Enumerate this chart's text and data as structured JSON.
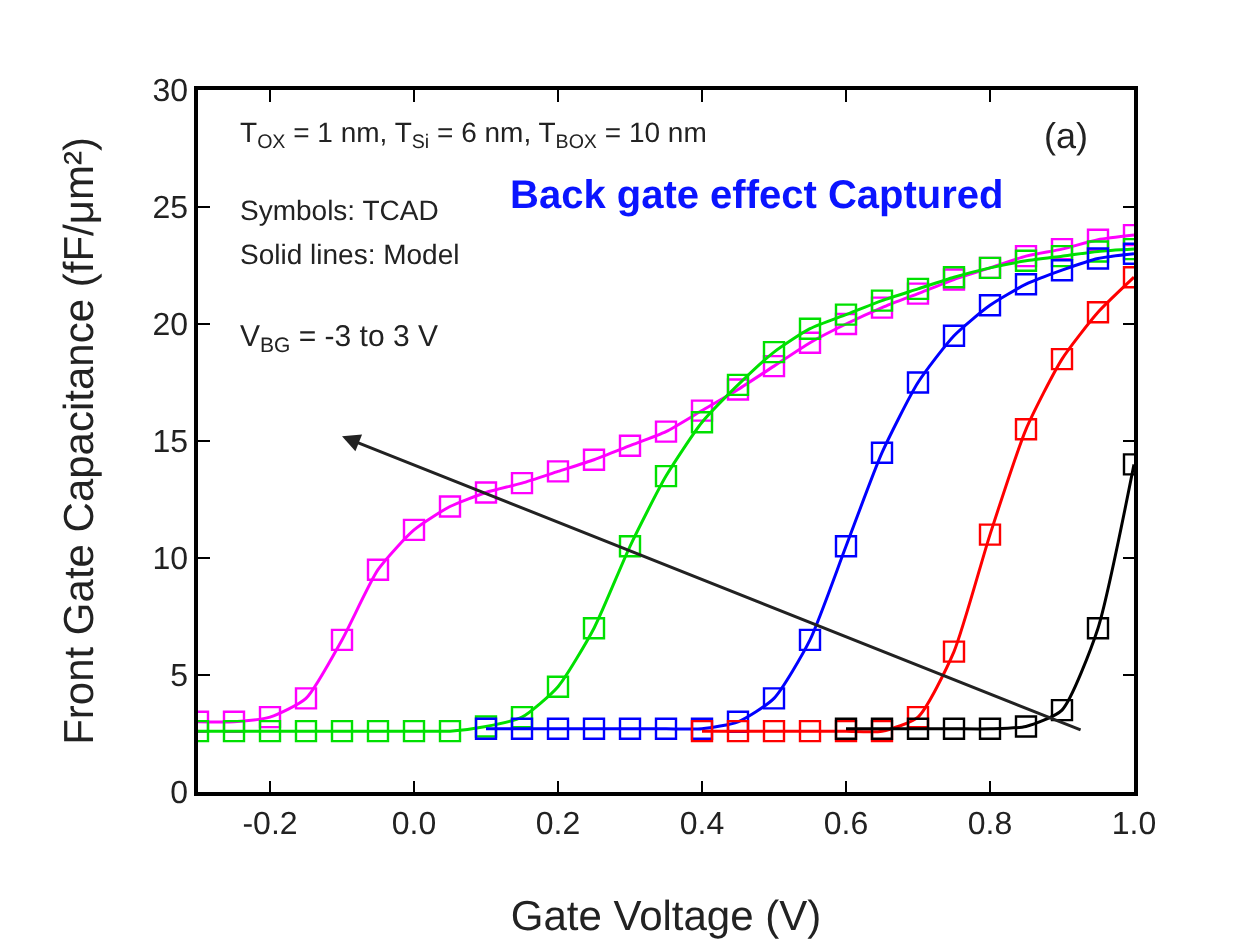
{
  "chart_data": {
    "type": "line",
    "xlabel": "Gate Voltage (V)",
    "ylabel": "Front Gate Capacitance (fF/μm²)",
    "xlim": [
      -0.3,
      1.0
    ],
    "xticks": [
      {
        "value": -0.2,
        "label": "-0.2"
      },
      {
        "value": 0,
        "label": "0.0"
      },
      {
        "value": 0.2,
        "label": "0.2"
      },
      {
        "value": 0.4,
        "label": "0.4"
      },
      {
        "value": 0.6,
        "label": "0.6"
      },
      {
        "value": 0.8,
        "label": "0.8"
      },
      {
        "value": 1,
        "label": "1.0"
      }
    ],
    "ylim": [
      0,
      30
    ],
    "yticks": [
      0,
      5,
      10,
      15,
      20,
      25,
      30
    ],
    "grid": false,
    "marker": "square",
    "line_style": "solid",
    "annotations": [
      "T$_{OX}$ = 1 nm, T$_{Si}$ = 6 nm, T$_{BOX}$ = 10 nm",
      "Symbols: TCAD",
      "Solid lines: Model",
      "(a)",
      "Back gate effect Captured",
      "V$_{BG}$ = -3 to 3 V"
    ],
    "series": [
      {
        "color": "#ff00ff",
        "x": [
          -0.3,
          -0.25,
          -0.2,
          -0.15,
          -0.1,
          -0.05,
          0,
          0.05,
          0.1,
          0.15,
          0.2,
          0.25,
          0.3,
          0.35,
          0.4,
          0.45,
          0.5,
          0.55,
          0.6,
          0.65,
          0.7,
          0.75,
          0.8,
          0.85,
          0.9,
          0.95,
          1.0
        ],
        "values": [
          3.0,
          3.0,
          3.2,
          4.0,
          6.5,
          9.5,
          11.2,
          12.2,
          12.8,
          13.2,
          13.7,
          14.2,
          14.8,
          15.4,
          16.3,
          17.2,
          18.2,
          19.2,
          20.0,
          20.7,
          21.3,
          21.9,
          22.4,
          22.9,
          23.2,
          23.6,
          23.8
        ]
      },
      {
        "color": "#00e000",
        "x": [
          -0.3,
          -0.25,
          -0.2,
          -0.15,
          -0.1,
          -0.05,
          0,
          0.05,
          0.1,
          0.15,
          0.2,
          0.25,
          0.3,
          0.35,
          0.4,
          0.45,
          0.5,
          0.55,
          0.6,
          0.65,
          0.7,
          0.75,
          0.8,
          0.85,
          0.9,
          0.95,
          1.0
        ],
        "values": [
          2.6,
          2.6,
          2.6,
          2.6,
          2.6,
          2.6,
          2.6,
          2.6,
          2.8,
          3.2,
          4.5,
          7.0,
          10.5,
          13.5,
          15.8,
          17.4,
          18.8,
          19.8,
          20.4,
          21.0,
          21.5,
          22.0,
          22.4,
          22.7,
          22.9,
          23.1,
          23.2
        ]
      },
      {
        "color": "#0000ff",
        "x": [
          0.1,
          0.15,
          0.2,
          0.25,
          0.3,
          0.35,
          0.4,
          0.45,
          0.5,
          0.55,
          0.6,
          0.65,
          0.7,
          0.75,
          0.8,
          0.85,
          0.9,
          0.95,
          1.0
        ],
        "values": [
          2.7,
          2.7,
          2.7,
          2.7,
          2.7,
          2.7,
          2.7,
          3.0,
          4.0,
          6.5,
          10.5,
          14.5,
          17.5,
          19.5,
          20.8,
          21.7,
          22.3,
          22.8,
          23.0
        ]
      },
      {
        "color": "#ff0000",
        "x": [
          0.4,
          0.45,
          0.5,
          0.55,
          0.6,
          0.65,
          0.7,
          0.75,
          0.8,
          0.85,
          0.9,
          0.95,
          1.0
        ],
        "values": [
          2.6,
          2.6,
          2.6,
          2.6,
          2.6,
          2.6,
          3.2,
          6.0,
          11.0,
          15.5,
          18.5,
          20.5,
          22.0
        ]
      },
      {
        "color": "#000000",
        "x": [
          0.6,
          0.65,
          0.7,
          0.75,
          0.8,
          0.85,
          0.9,
          0.95,
          1.0
        ],
        "values": [
          2.7,
          2.7,
          2.7,
          2.7,
          2.7,
          2.8,
          3.5,
          7.0,
          14.0
        ]
      }
    ]
  }
}
